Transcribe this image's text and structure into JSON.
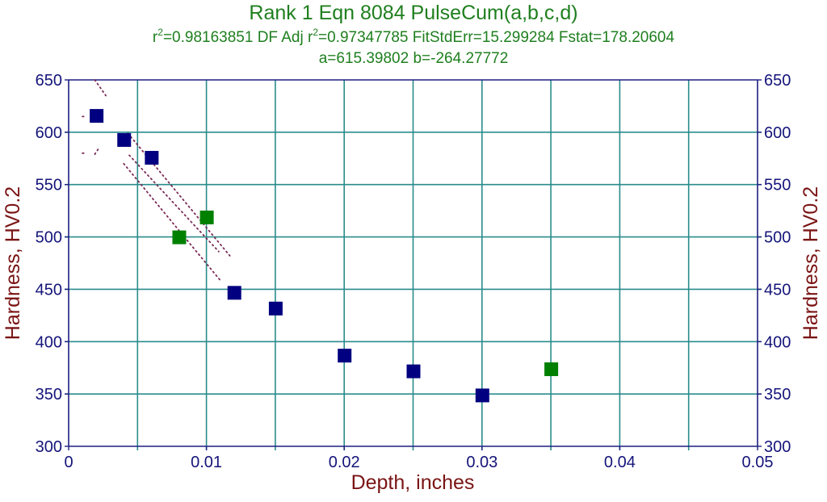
{
  "header": {
    "title": "Rank 1  Eqn 8084  PulseCum(a,b,c,d)",
    "stats_r2_prefix": "r",
    "stats_r2_exp": "2",
    "stats_r2_value": "=0.98163851  DF Adj r",
    "stats_adj_exp": "2",
    "stats_rest": "=0.97347785  FitStdErr=15.299284  Fstat=178.20604",
    "params": "a=615.39802 b=-264.27772"
  },
  "colors": {
    "title": "#1f7f1f",
    "axis": "#1e1e82",
    "grid": "#2a8c8c",
    "tick_label": "#14147a",
    "axis_label": "#7a1414",
    "marker_primary": "#000080",
    "marker_secondary": "#008000",
    "fit_line": "#7a2a55"
  },
  "chart_data": {
    "type": "scatter",
    "title": "Rank 1  Eqn 8084  PulseCum(a,b,c,d)",
    "subtitle": "r2=0.98163851  DF Adj r2=0.97347785  FitStdErr=15.299284  Fstat=178.20604; a=615.39802 b=-264.27772",
    "xlabel": "Depth, inches",
    "ylabel": "Hardness, HV0.2",
    "ylabel_right": "Hardness, HV0.2",
    "xlim": [
      0,
      0.05
    ],
    "ylim": [
      300,
      650
    ],
    "xticks": [
      0,
      0.01,
      0.02,
      0.03,
      0.04,
      0.05
    ],
    "xtick_labels": [
      "0",
      "0.01",
      "0.02",
      "0.03",
      "0.04",
      "0.05"
    ],
    "xgrid": [
      0.005,
      0.01,
      0.015,
      0.02,
      0.025,
      0.03,
      0.035,
      0.04,
      0.045
    ],
    "yticks": [
      300,
      350,
      400,
      450,
      500,
      550,
      600,
      650
    ],
    "ytick_labels": [
      "300",
      "350",
      "400",
      "450",
      "500",
      "550",
      "600",
      "650"
    ],
    "grid": true,
    "legend": null,
    "series": [
      {
        "name": "data (fitted)",
        "marker": "square",
        "color": "#000080",
        "x": [
          0.002,
          0.004,
          0.006,
          0.012,
          0.015,
          0.02,
          0.025,
          0.03
        ],
        "y": [
          616,
          593,
          576,
          447,
          432,
          387,
          372,
          349
        ]
      },
      {
        "name": "data (excluded)",
        "marker": "square",
        "color": "#008000",
        "x": [
          0.008,
          0.01,
          0.035
        ],
        "y": [
          500,
          519,
          374
        ]
      }
    ],
    "fit_lines": [
      {
        "name": "upper-band",
        "x": [
          0.0043,
          0.0117
        ],
        "y": [
          599,
          482
        ]
      },
      {
        "name": "fit",
        "x": [
          0.0044,
          0.0109
        ],
        "y": [
          578,
          486
        ]
      },
      {
        "name": "lower-band",
        "x": [
          0.004,
          0.0111
        ],
        "y": [
          570,
          457
        ]
      },
      {
        "name": "upper-band-top",
        "x": [
          0.0019,
          0.0027
        ],
        "y": [
          650,
          635
        ]
      },
      {
        "name": "fragment-a",
        "x": [
          0.001,
          0.0012
        ],
        "y": [
          615,
          615
        ]
      },
      {
        "name": "fragment-b",
        "x": [
          0.001,
          0.0012
        ],
        "y": [
          580,
          580
        ]
      },
      {
        "name": "fragment-c",
        "x": [
          0.0019,
          0.0022
        ],
        "y": [
          579,
          585
        ]
      }
    ]
  }
}
